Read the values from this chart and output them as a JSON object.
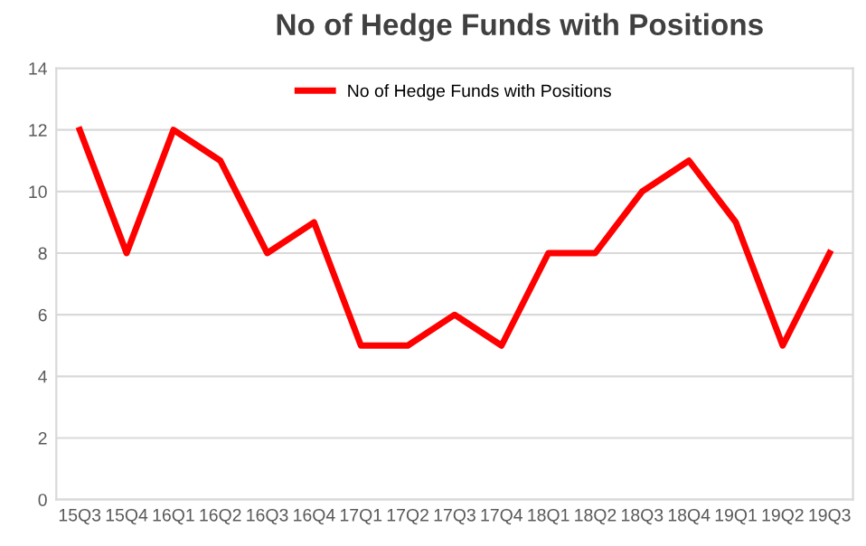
{
  "chart_data": {
    "type": "line",
    "title": "No of Hedge Funds with Positions",
    "categories": [
      "15Q3",
      "15Q4",
      "16Q1",
      "16Q2",
      "16Q3",
      "16Q4",
      "17Q1",
      "17Q2",
      "17Q3",
      "17Q4",
      "18Q1",
      "18Q2",
      "18Q3",
      "18Q4",
      "19Q1",
      "19Q2",
      "19Q3"
    ],
    "series": [
      {
        "name": "No of Hedge Funds with Positions",
        "color": "#ff0000",
        "values": [
          12,
          8,
          12,
          11,
          8,
          9,
          5,
          5,
          6,
          5,
          8,
          8,
          10,
          11,
          9,
          5,
          8
        ]
      }
    ],
    "ylim": [
      0,
      14
    ],
    "yticks": [
      0,
      2,
      4,
      6,
      8,
      10,
      12,
      14
    ],
    "grid": "y",
    "legend": "top",
    "marker": "none",
    "line_style": "solid"
  }
}
